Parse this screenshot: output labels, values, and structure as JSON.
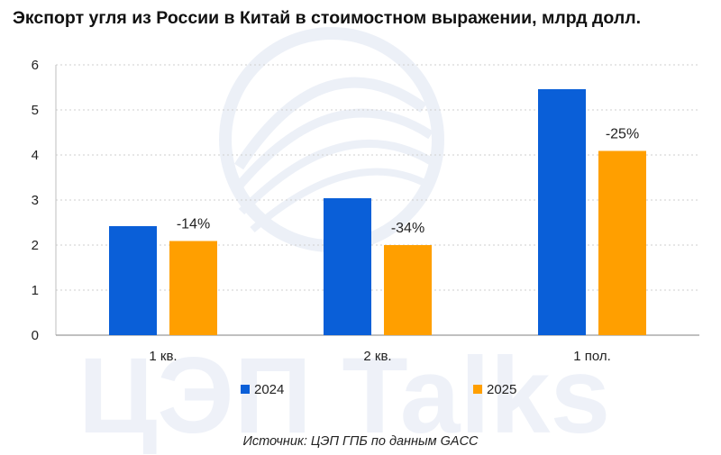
{
  "title": "Экспорт угля из России в Китай в стоимостном выражении, млрд долл.",
  "source": "Источник: ЦЭП ГПБ по данным GACC",
  "watermark": "ЦЭП Talks",
  "colors": {
    "2024": "#0a5fd8",
    "2025": "#ff9f00"
  },
  "chart_data": {
    "type": "bar",
    "title": "Экспорт угля из России в Китай в стоимостном выражении, млрд долл.",
    "categories": [
      "1 кв.",
      "2 кв.",
      "1 пол."
    ],
    "series": [
      {
        "name": "2024",
        "values": [
          2.42,
          3.04,
          5.46
        ]
      },
      {
        "name": "2025",
        "values": [
          2.09,
          2.0,
          4.09
        ]
      }
    ],
    "data_labels": [
      "-14%",
      "-34%",
      "-25%"
    ],
    "ylim": [
      0,
      6
    ],
    "yticks": [
      0,
      1,
      2,
      3,
      4,
      5,
      6
    ],
    "grid": true,
    "legend_position": "bottom"
  }
}
